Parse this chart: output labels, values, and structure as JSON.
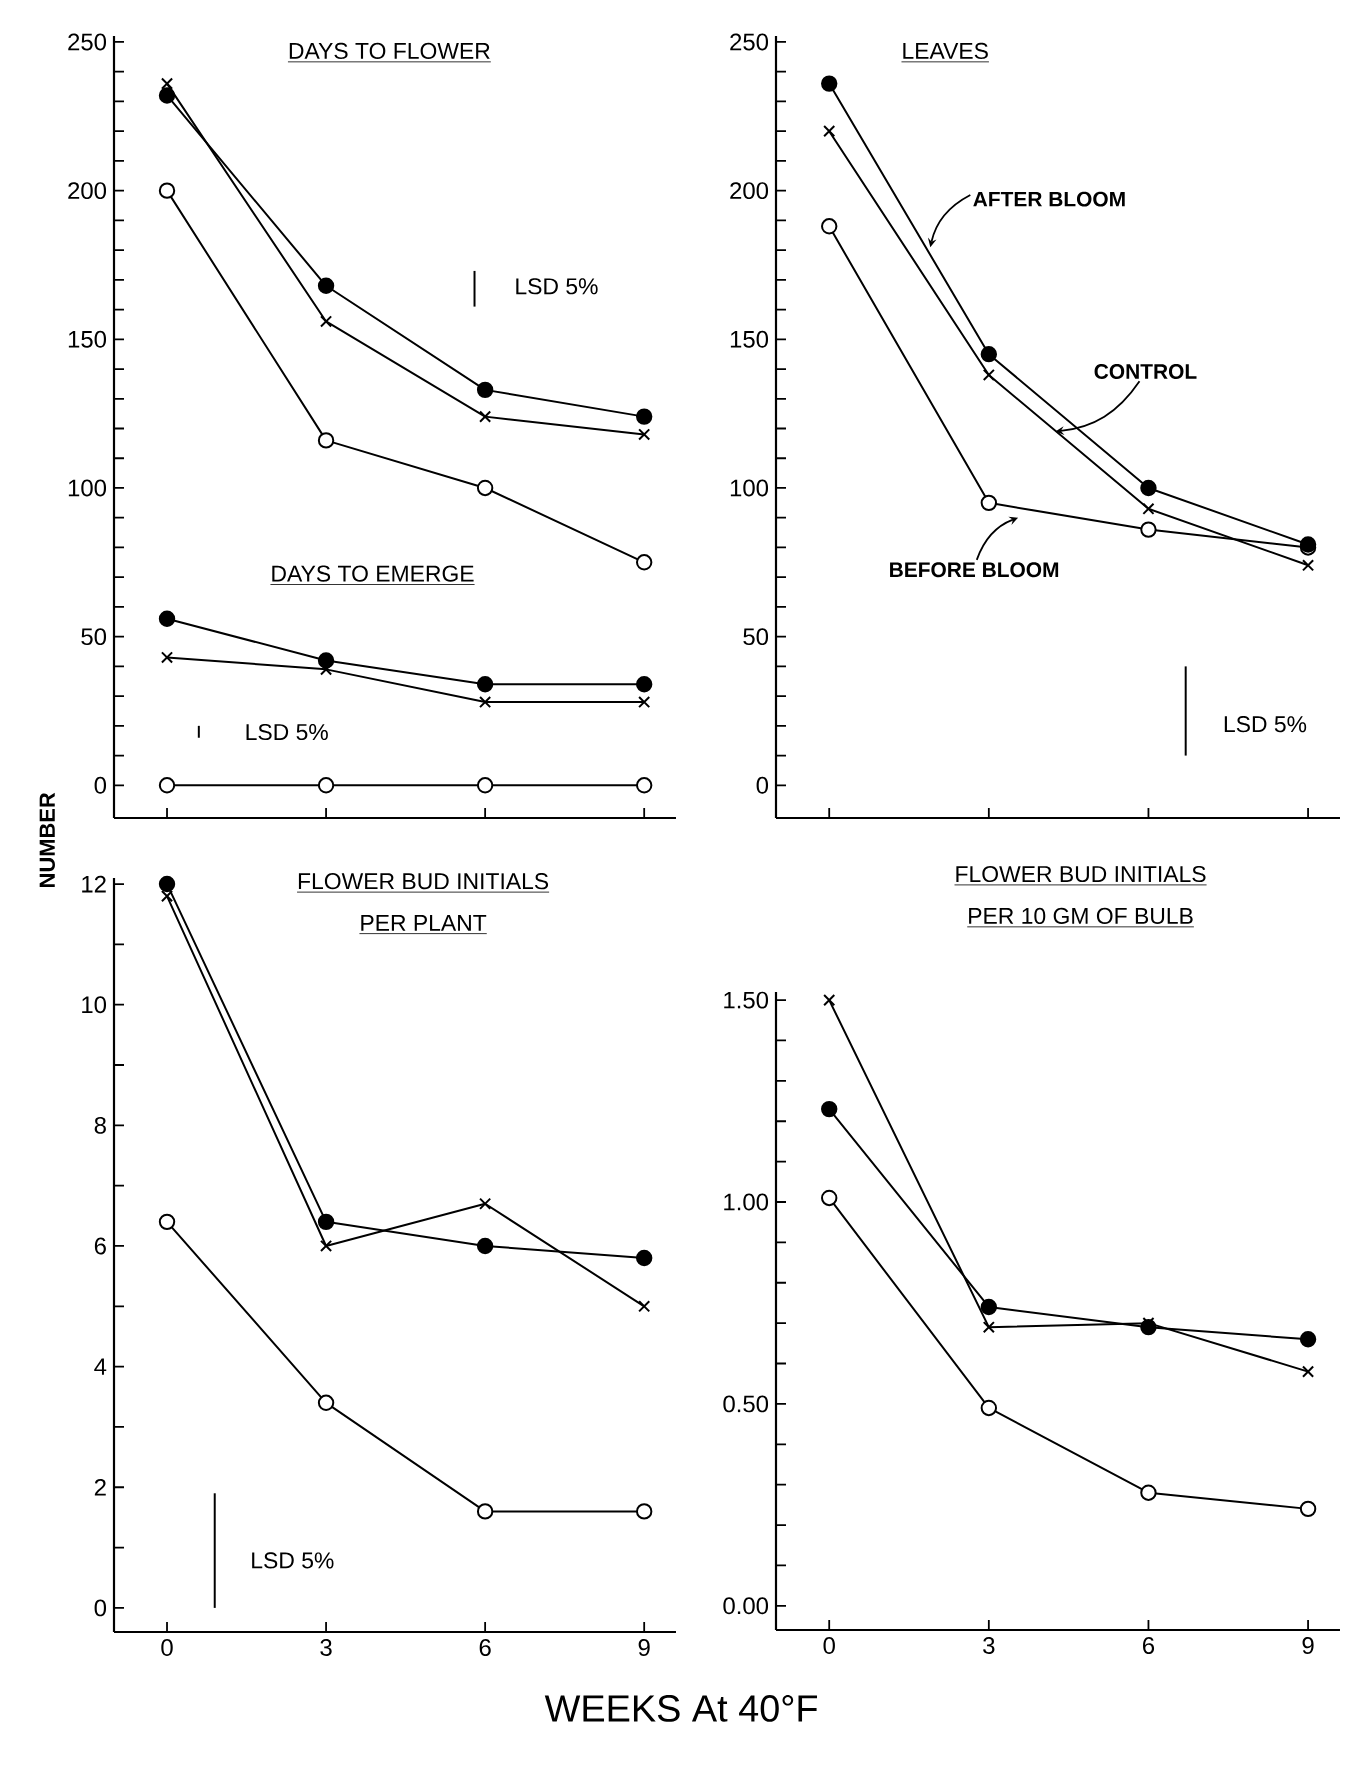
{
  "chart_data": [
    {
      "type": "line",
      "title": "DAYS TO FLOWER",
      "x": [
        0,
        3,
        6,
        9
      ],
      "xlim": [
        -1,
        9.6
      ],
      "ylim": [
        -11,
        252
      ],
      "tick_labels": "y",
      "xticks": [
        {
          "value": 0,
          "label": null
        },
        {
          "value": 3,
          "label": null
        },
        {
          "value": 6,
          "label": null
        },
        {
          "value": 9,
          "label": null
        }
      ],
      "yticks": [
        0,
        {
          "value": 10,
          "label": null
        },
        {
          "value": 20,
          "label": null
        },
        {
          "value": 30,
          "label": null
        },
        {
          "value": 40,
          "label": null
        },
        50,
        {
          "value": 60,
          "label": null
        },
        {
          "value": 70,
          "label": null
        },
        {
          "value": 80,
          "label": null
        },
        {
          "value": 90,
          "label": null
        },
        100,
        {
          "value": 110,
          "label": null
        },
        {
          "value": 120,
          "label": null
        },
        {
          "value": 130,
          "label": null
        },
        {
          "value": 140,
          "label": null
        },
        150,
        {
          "value": 160,
          "label": null
        },
        {
          "value": 170,
          "label": null
        },
        {
          "value": 180,
          "label": null
        },
        {
          "value": 190,
          "label": null
        },
        200,
        {
          "value": 210,
          "label": null
        },
        {
          "value": 220,
          "label": null
        },
        {
          "value": 230,
          "label": null
        },
        {
          "value": 240,
          "label": null
        },
        250
      ],
      "series": [
        {
          "color": "#000000",
          "marker": "circle",
          "values": [
            232,
            168,
            133,
            124
          ]
        },
        {
          "color": "#000000",
          "marker": "cross",
          "values": [
            236,
            156,
            124,
            118
          ]
        },
        {
          "color": "#000000",
          "marker": "circle_open",
          "values": [
            200,
            116,
            100,
            75
          ]
        },
        {
          "color": "#000000",
          "marker": "circle",
          "values": [
            56,
            42,
            34,
            34
          ]
        },
        {
          "color": "#000000",
          "marker": "cross",
          "values": [
            43,
            39,
            28,
            28
          ]
        },
        {
          "color": "#000000",
          "marker": "circle_open",
          "values": [
            0,
            0,
            0,
            0
          ]
        },
        {
          "color": "#000000",
          "marker": "none",
          "x": [
            5.8,
            5.8
          ],
          "values": [
            161,
            173
          ]
        },
        {
          "color": "#000000",
          "marker": "none",
          "x": [
            0.6,
            0.6
          ],
          "values": [
            16,
            20
          ]
        }
      ],
      "annotations": [
        "DAYS TO EMERGE",
        "LSD 5%",
        "LSD 5%"
      ]
    },
    {
      "type": "line",
      "title": "LEAVES",
      "x": [
        0,
        3,
        6,
        9
      ],
      "xlim": [
        -1,
        9.6
      ],
      "ylim": [
        -11,
        252
      ],
      "tick_labels": "y",
      "xticks": [
        {
          "value": 0,
          "label": null
        },
        {
          "value": 3,
          "label": null
        },
        {
          "value": 6,
          "label": null
        },
        {
          "value": 9,
          "label": null
        }
      ],
      "yticks": [
        0,
        {
          "value": 10,
          "label": null
        },
        {
          "value": 20,
          "label": null
        },
        {
          "value": 30,
          "label": null
        },
        {
          "value": 40,
          "label": null
        },
        50,
        {
          "value": 60,
          "label": null
        },
        {
          "value": 70,
          "label": null
        },
        {
          "value": 80,
          "label": null
        },
        {
          "value": 90,
          "label": null
        },
        100,
        {
          "value": 110,
          "label": null
        },
        {
          "value": 120,
          "label": null
        },
        {
          "value": 130,
          "label": null
        },
        {
          "value": 140,
          "label": null
        },
        150,
        {
          "value": 160,
          "label": null
        },
        {
          "value": 170,
          "label": null
        },
        {
          "value": 180,
          "label": null
        },
        {
          "value": 190,
          "label": null
        },
        200,
        {
          "value": 210,
          "label": null
        },
        {
          "value": 220,
          "label": null
        },
        {
          "value": 230,
          "label": null
        },
        {
          "value": 240,
          "label": null
        },
        250
      ],
      "series": [
        {
          "color": "#000000",
          "marker": "circle",
          "values": [
            236,
            145,
            100,
            81
          ]
        },
        {
          "color": "#000000",
          "marker": "cross",
          "values": [
            220,
            138,
            93,
            74
          ]
        },
        {
          "color": "#000000",
          "marker": "circle_open",
          "values": [
            188,
            95,
            86,
            80
          ]
        },
        {
          "color": "#000000",
          "marker": "none",
          "x": [
            6.7,
            6.7
          ],
          "values": [
            10,
            40
          ]
        }
      ],
      "annotations": [
        {
          "text": "AFTER BLOOM",
          "x": 1.9,
          "y": 181
        },
        {
          "text": "CONTROL",
          "x": 4.25,
          "y": 119
        },
        {
          "text": "BEFORE BLOOM",
          "x": 3.55,
          "y": 90
        },
        "LSD 5%"
      ]
    },
    {
      "type": "line",
      "title": "FLOWER BUD INITIALS",
      "subtitle": "PER PLANT",
      "xlabel": "WEEKS At 40°F",
      "ylabel": "NUMBER",
      "x": [
        0,
        3,
        6,
        9
      ],
      "xlim": [
        -1,
        9.6
      ],
      "ylim": [
        -0.4,
        12.1
      ],
      "xticks": [
        0,
        3,
        6,
        9
      ],
      "yticks": [
        0,
        {
          "value": 1,
          "label": null
        },
        2,
        {
          "value": 3,
          "label": null
        },
        4,
        {
          "value": 5,
          "label": null
        },
        6,
        {
          "value": 7,
          "label": null
        },
        8,
        {
          "value": 9,
          "label": null
        },
        10,
        {
          "value": 11,
          "label": null
        },
        12
      ],
      "series": [
        {
          "color": "#000000",
          "marker": "circle",
          "values": [
            12.0,
            6.4,
            6.0,
            5.8
          ]
        },
        {
          "color": "#000000",
          "marker": "cross",
          "values": [
            11.8,
            6.0,
            6.7,
            5.0
          ]
        },
        {
          "color": "#000000",
          "marker": "circle_open",
          "values": [
            6.4,
            3.4,
            1.6,
            1.6
          ]
        },
        {
          "color": "#000000",
          "marker": "none",
          "x": [
            0.9,
            0.9
          ],
          "values": [
            0,
            1.9
          ]
        }
      ],
      "annotations": [
        "LSD 5%"
      ]
    },
    {
      "type": "line",
      "title": "FLOWER BUD INITIALS",
      "subtitle": "PER 10 GM OF BULB",
      "x": [
        0,
        3,
        6,
        9
      ],
      "xlim": [
        -1,
        9.6
      ],
      "ylim": [
        -0.06,
        1.52
      ],
      "xticks": [
        0,
        3,
        6,
        9
      ],
      "yticks": [
        {
          "value": 0,
          "label": "0.00"
        },
        {
          "value": 0.1,
          "label": null
        },
        {
          "value": 0.2,
          "label": null
        },
        {
          "value": 0.3,
          "label": null
        },
        {
          "value": 0.4,
          "label": null
        },
        {
          "value": 0.5,
          "label": "0.50"
        },
        {
          "value": 0.6,
          "label": null
        },
        {
          "value": 0.7,
          "label": null
        },
        {
          "value": 0.8,
          "label": null
        },
        {
          "value": 0.9,
          "label": null
        },
        {
          "value": 1.0,
          "label": "1.00"
        },
        {
          "value": 1.1,
          "label": null
        },
        {
          "value": 1.2,
          "label": null
        },
        {
          "value": 1.3,
          "label": null
        },
        {
          "value": 1.4,
          "label": null
        },
        {
          "value": 1.5,
          "label": "1.50"
        }
      ],
      "series": [
        {
          "color": "#000000",
          "marker": "circle",
          "values": [
            1.23,
            0.74,
            0.69,
            0.66
          ]
        },
        {
          "color": "#000000",
          "marker": "cross",
          "values": [
            1.5,
            0.69,
            0.7,
            0.58
          ]
        },
        {
          "color": "#000000",
          "marker": "circle_open",
          "values": [
            1.01,
            0.49,
            0.28,
            0.24
          ]
        }
      ]
    }
  ]
}
